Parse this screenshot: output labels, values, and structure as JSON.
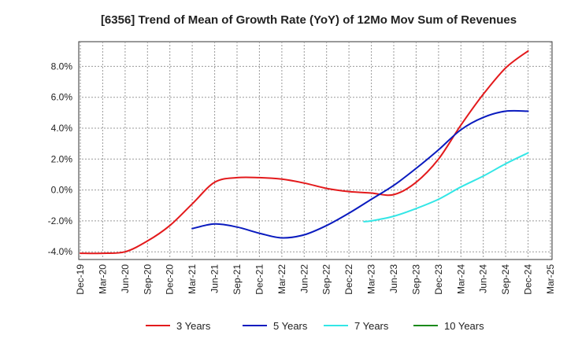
{
  "chart_data": {
    "type": "line",
    "title": "[6356]  Trend of Mean of Growth Rate (YoY) of 12Mo Mov Sum of Revenues",
    "xlabel": "",
    "ylabel": "",
    "categories": [
      "Dec-19",
      "Mar-20",
      "Jun-20",
      "Sep-20",
      "Dec-20",
      "Mar-21",
      "Jun-21",
      "Sep-21",
      "Dec-21",
      "Mar-22",
      "Jun-22",
      "Sep-22",
      "Dec-22",
      "Mar-23",
      "Jun-23",
      "Sep-23",
      "Dec-23",
      "Mar-24",
      "Jun-24",
      "Sep-24",
      "Dec-24",
      "Mar-25"
    ],
    "ylim": [
      -4.5,
      9.6
    ],
    "yticks": [
      -4.0,
      -2.0,
      0.0,
      2.0,
      4.0,
      6.0,
      8.0
    ],
    "ytick_labels": [
      "-4.0%",
      "-2.0%",
      "0.0%",
      "2.0%",
      "4.0%",
      "6.0%",
      "8.0%"
    ],
    "grid": true,
    "legend_position": "bottom",
    "series": [
      {
        "name": "3 Years",
        "color": "#e31a1c",
        "points": [
          [
            0,
            -4.1
          ],
          [
            1,
            -4.1
          ],
          [
            2,
            -4.0
          ],
          [
            3,
            -3.3
          ],
          [
            4,
            -2.3
          ],
          [
            5,
            -0.9
          ],
          [
            6,
            0.5
          ],
          [
            7,
            0.8
          ],
          [
            8,
            0.8
          ],
          [
            9,
            0.7
          ],
          [
            10,
            0.45
          ],
          [
            11,
            0.1
          ],
          [
            12,
            -0.1
          ],
          [
            13,
            -0.2
          ],
          [
            14,
            -0.3
          ],
          [
            15,
            0.5
          ],
          [
            16,
            2.0
          ],
          [
            17,
            4.2
          ],
          [
            18,
            6.2
          ],
          [
            19,
            7.9
          ],
          [
            20,
            9.0
          ]
        ]
      },
      {
        "name": "5 Years",
        "color": "#0a1bbf",
        "points": [
          [
            5,
            -2.5
          ],
          [
            6,
            -2.2
          ],
          [
            7,
            -2.4
          ],
          [
            8,
            -2.8
          ],
          [
            9,
            -3.1
          ],
          [
            10,
            -2.9
          ],
          [
            11,
            -2.3
          ],
          [
            12,
            -1.5
          ],
          [
            13,
            -0.6
          ],
          [
            14,
            0.3
          ],
          [
            15,
            1.4
          ],
          [
            16,
            2.6
          ],
          [
            17,
            3.9
          ],
          [
            18,
            4.7
          ],
          [
            19,
            5.1
          ],
          [
            20,
            5.1
          ]
        ]
      },
      {
        "name": "7 Years",
        "color": "#33e6e6",
        "points": [
          [
            12.67,
            -2.05
          ],
          [
            13,
            -2.0
          ],
          [
            14,
            -1.7
          ],
          [
            15,
            -1.2
          ],
          [
            16,
            -0.6
          ],
          [
            17,
            0.2
          ],
          [
            18,
            0.9
          ],
          [
            19,
            1.7
          ],
          [
            20,
            2.4
          ]
        ]
      },
      {
        "name": "10 Years",
        "color": "#1a8a1a",
        "points": []
      }
    ]
  }
}
